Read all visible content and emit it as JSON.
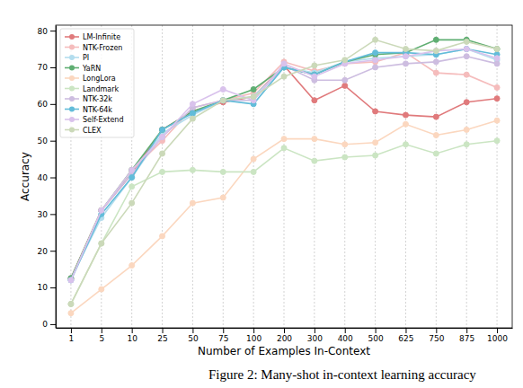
{
  "chart_data": {
    "type": "line",
    "title": "Figure 2: Many-shot in-context learning accuracy",
    "x_label": "Number of Examples In-Context",
    "y_label": "Accuracy",
    "categories": [
      1,
      5,
      10,
      25,
      50,
      75,
      100,
      200,
      300,
      400,
      500,
      625,
      750,
      875,
      1000
    ],
    "ylim": [
      -1,
      81.5
    ],
    "yticks": [
      0,
      10,
      20,
      30,
      40,
      50,
      60,
      70,
      80
    ],
    "grid": true,
    "legend": "upper left",
    "marker": "circle",
    "series": [
      {
        "name": "LM-Infinite",
        "color": "#e07a7c",
        "values": [
          12.5,
          31,
          41,
          53,
          58,
          60.5,
          62,
          70.5,
          61,
          65,
          58,
          57,
          56.5,
          60.5,
          61.5
        ]
      },
      {
        "name": "NTK-Frozen",
        "color": "#f5bcbc",
        "values": [
          12.5,
          31,
          42,
          50,
          59,
          61,
          63,
          71.5,
          69,
          71,
          71.5,
          74,
          68.5,
          68,
          64.5
        ]
      },
      {
        "name": "PI",
        "color": "#b3ddee",
        "values": [
          12.5,
          29,
          40,
          52,
          57,
          61,
          62,
          70,
          68.5,
          71.5,
          72.5,
          73,
          73.5,
          75,
          72
        ]
      },
      {
        "name": "YaRN",
        "color": "#5fae72",
        "values": [
          12.5,
          31,
          42,
          53,
          58,
          61,
          64,
          70,
          68,
          71.5,
          73.5,
          74,
          77.5,
          77.5,
          75
        ]
      },
      {
        "name": "LongLora",
        "color": "#fbd7bf",
        "values": [
          3,
          9.5,
          16,
          24,
          33,
          34.5,
          45,
          50.5,
          50.5,
          49,
          49.5,
          54.5,
          51.5,
          53,
          55.5
        ]
      },
      {
        "name": "Landmark",
        "color": "#cbe5c3",
        "values": [
          5.5,
          22,
          37.5,
          41.5,
          42,
          41.5,
          41.5,
          48,
          44.5,
          45.5,
          46,
          49,
          46.5,
          49,
          50
        ]
      },
      {
        "name": "NTK-32k",
        "color": "#cdbde0",
        "values": [
          12,
          31,
          41,
          51,
          59,
          61,
          61,
          70.5,
          66.5,
          66.5,
          70,
          71,
          71.5,
          73,
          71
        ]
      },
      {
        "name": "NTK-64k",
        "color": "#62bcd9",
        "values": [
          12,
          30,
          40,
          53,
          57.5,
          61,
          60,
          70,
          68,
          71.5,
          74,
          74,
          73.5,
          75,
          73.5
        ]
      },
      {
        "name": "Self-Extend",
        "color": "#d9c2ec",
        "values": [
          12,
          31,
          42,
          51,
          60,
          64,
          61,
          71,
          67.5,
          71,
          72,
          73,
          74.5,
          75,
          72.5
        ]
      },
      {
        "name": "CLEX",
        "color": "#cbd9b9",
        "values": [
          5.5,
          22,
          33,
          46.5,
          56,
          61,
          62,
          67.5,
          70.5,
          72,
          77.5,
          75,
          74.5,
          77,
          75
        ]
      }
    ]
  }
}
